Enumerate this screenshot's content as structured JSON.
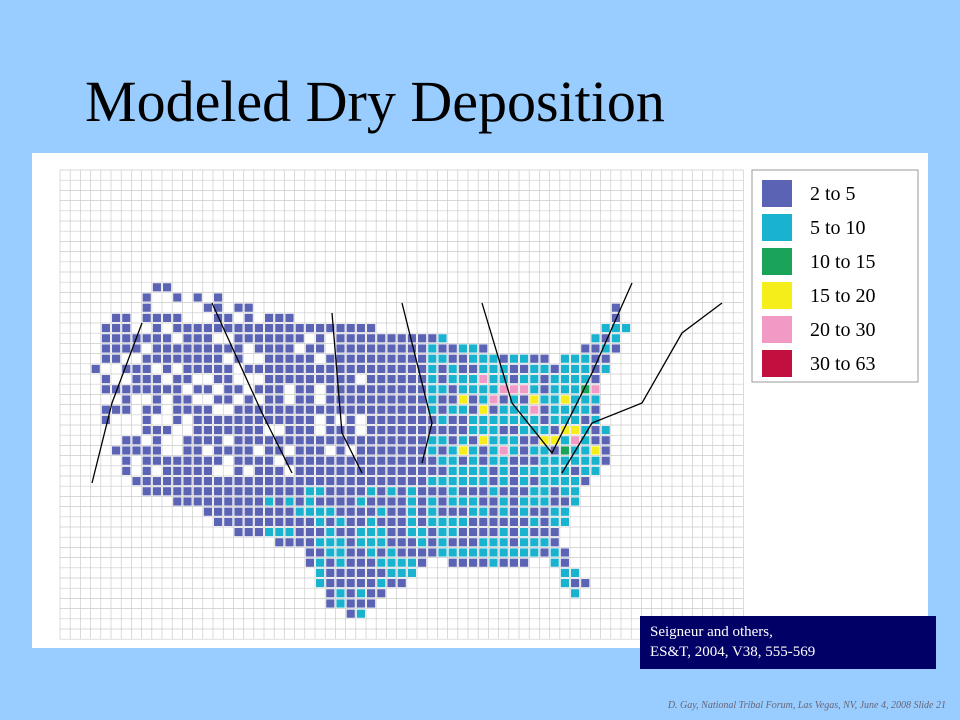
{
  "title": "Modeled Dry Deposition",
  "legend": [
    {
      "label": "2 to 5",
      "color": "#5b63b4"
    },
    {
      "label": "5 to 10",
      "color": "#19b3cf"
    },
    {
      "label": "10 to 15",
      "color": "#1aa45a"
    },
    {
      "label": "15 to 20",
      "color": "#f5ee1b"
    },
    {
      "label": "20 to 30",
      "color": "#f29ac6"
    },
    {
      "label": "30 to 63",
      "color": "#c1103f"
    }
  ],
  "citation": [
    "Seigneur and others,",
    "ES&T, 2004, V38, 555-569"
  ],
  "footer": "D. Gay, National Tribal Forum, Las Vegas, NV, June 4, 2008 Slide 21"
}
